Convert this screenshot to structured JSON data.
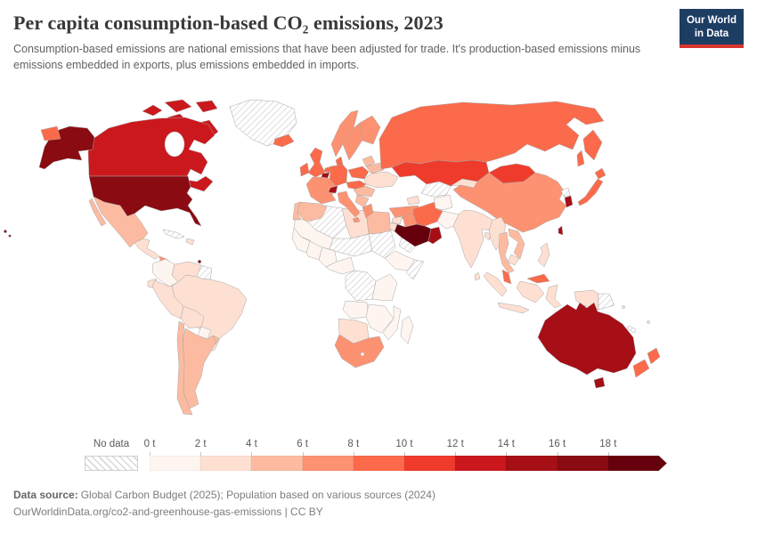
{
  "header": {
    "title": "Per capita consumption-based CO₂ emissions, 2023",
    "subtitle": "Consumption-based emissions are national emissions that have been adjusted for trade. It's production-based emissions minus emissions embedded in exports, plus emissions embedded in imports.",
    "logo": {
      "line1": "Our World",
      "line2": "in Data",
      "bg_color": "#1d3d63",
      "accent_color": "#d7352e"
    }
  },
  "legend": {
    "no_data_label": "No data",
    "tick_labels": [
      "0 t",
      "2 t",
      "4 t",
      "6 t",
      "8 t",
      "10 t",
      "12 t",
      "14 t",
      "16 t",
      "18 t"
    ]
  },
  "footer": {
    "source_label": "Data source:",
    "source_text": "Global Carbon Budget (2025); Population based on various sources (2024)",
    "link_text": "OurWorldinData.org/co2-and-greenhouse-gas-emissions | CC BY"
  },
  "chart_data": {
    "type": "choropleth",
    "title": "Per capita consumption-based CO₂ emissions, 2023",
    "unit": "tonnes of CO₂ per person",
    "bins": [
      "0–2 t",
      "2–4 t",
      "4–6 t",
      "6–8 t",
      "8–10 t",
      "10–12 t",
      "12–14 t",
      "14–16 t",
      "16–18 t",
      "18+ t"
    ],
    "colors": [
      "#fff5f0",
      "#fee0d2",
      "#fcbba1",
      "#fc9272",
      "#fb6a4a",
      "#ef3b2c",
      "#cb181d",
      "#a50f15",
      "#8a0b12",
      "#67000d"
    ],
    "no_data_style": "diagonal-hatch",
    "regions": {
      "united-states": 8,
      "canada": 6,
      "mexico": 2,
      "guatemala-region": 1,
      "panama-region": 3,
      "hispaniola": 1,
      "trinidad-and-tobago": 8,
      "colombia": 0,
      "venezuela": 1,
      "brazil": 1,
      "peru": 1,
      "ecuador": 1,
      "bolivia": 1,
      "paraguay": 0,
      "argentina": 2,
      "chile": 2,
      "uruguay": 2,
      "iceland": 4,
      "norway": 3,
      "sweden": 3,
      "finland": 3,
      "united-kingdom": 4,
      "ireland": 4,
      "denmark": 4,
      "netherlands": 4,
      "belgium": 7,
      "germany": 4,
      "france": 3,
      "spain": 2,
      "portugal": 2,
      "switzerland": 7,
      "italy": 3,
      "austria-czechia": 4,
      "poland": 4,
      "baltics": 2,
      "belarus": 2,
      "ukraine": 1,
      "romania-hungary": 2,
      "balkans": 2,
      "greece": 3,
      "turkey": 3,
      "caucasus": 1,
      "syria": 1,
      "iraq": 3,
      "iran": 4,
      "israel-jordan": 1,
      "saudi-arabia": 9,
      "oman-uae": 7,
      "kazakhstan": 5,
      "kyrgyzstan-tajikistan": 1,
      "afghanistan": 0,
      "pakistan": 0,
      "russia": 4,
      "mongolia": 5,
      "china": 3,
      "india": 1,
      "bangladesh": 1,
      "sri-lanka": 1,
      "myanmar": 1,
      "thailand": 2,
      "vietnam": 2,
      "cambodia": 1,
      "malaysia": 4,
      "indonesia": 1,
      "philippines": 1,
      "papua-new-guinea": 1,
      "pacific-islands": 1,
      "japan": 4,
      "south-korea": 7,
      "taiwan": 7,
      "australia": 7,
      "new-zealand": 4,
      "morocco": 1,
      "libya": 1,
      "egypt": 2,
      "mauritania-mali": 0,
      "west-africa": 0,
      "nigeria": 0,
      "ethiopia": 0,
      "kenya-tanzania": 0,
      "angola": 0,
      "zambia-zimbabwe": 0,
      "mozambique": 0,
      "namibia-botswana": 1,
      "south-africa": 3,
      "madagascar": 0
    },
    "no_data_regions": [
      "greenland",
      "cuba",
      "guyana-suriname",
      "algeria",
      "niger-chad",
      "sudan",
      "somalia",
      "dr-congo",
      "yemen",
      "turkmenistan-uzbekistan",
      "north-korea",
      "papua-east",
      "new-caledonia"
    ]
  }
}
